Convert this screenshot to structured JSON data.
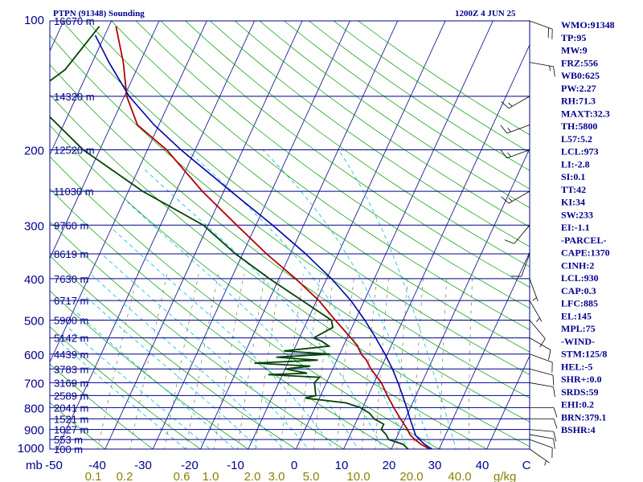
{
  "header": {
    "station": "PTPN (91348) Sounding",
    "time": "1200Z  4 JUN 25"
  },
  "indices": [
    "WMO:91348",
    "TP:95",
    "MW:9",
    "FRZ:556",
    "WB0:625",
    "PW:2.27",
    "RH:71.3",
    "MAXT:32.3",
    "TH:5800",
    "L57:5.2",
    "LCL:973",
    "LI:-2.8",
    "SI:0.1",
    "TT:42",
    "KI:34",
    "SW:233",
    "EI:-1.1",
    "-PARCEL-",
    "CAPE:1370",
    "CINH:2",
    "LCL:930",
    "CAP:0.3",
    "LFC:885",
    "EL:145",
    "MPL:75",
    "-WIND-",
    "STM:125/8",
    "HEL:-5",
    "SHR+:0.0",
    "SRDS:59",
    "EHI:0.2",
    "BRN:379.1",
    "BSHR:4"
  ],
  "colors": {
    "frame": "#00008b",
    "isobar": "#00008b",
    "isotherm": "#00008b",
    "dry_adiabat": "#009900",
    "moist_adiabat": "#00bbdd",
    "mixing_ratio": "#777755",
    "temperature": "#b00000",
    "dewpoint": "#004400",
    "parcel": "#0000aa",
    "wind": "#000000"
  },
  "chart_data": {
    "type": "line",
    "title": "PTPN (91348) Sounding",
    "xlabel": "",
    "ylabel": "mb",
    "x_axis": "Temperature (°C), skewed",
    "y_axis": "Pressure (mb), log scale",
    "ylim": [
      1000,
      100
    ],
    "xlim": [
      -50,
      50
    ],
    "pressure_ticks": [
      {
        "p": 100,
        "label": "100"
      },
      {
        "p": 200,
        "label": "200"
      },
      {
        "p": 300,
        "label": "300"
      },
      {
        "p": 400,
        "label": "400"
      },
      {
        "p": 500,
        "label": "500"
      },
      {
        "p": 600,
        "label": "600"
      },
      {
        "p": 700,
        "label": "700"
      },
      {
        "p": 800,
        "label": "800"
      },
      {
        "p": 900,
        "label": "900"
      },
      {
        "p": 1000,
        "label": "1000"
      }
    ],
    "y_unit_label": "mb",
    "temperature_ticks": [
      "-50",
      "-40",
      "-30",
      "-20",
      "-10",
      "0",
      "10",
      "20",
      "30",
      "40",
      "C"
    ],
    "mixing_ratio_labels": [
      "0.1",
      "0.2",
      "0.6",
      "1.0",
      "2.0",
      "3.0",
      "5.0",
      "10.0",
      "20.0",
      "40.0"
    ],
    "mixing_ratio_unit": "g/kg",
    "height_levels": [
      {
        "p": 100,
        "label": "16670 m"
      },
      {
        "p": 150,
        "label": "14320 m"
      },
      {
        "p": 200,
        "label": "12520 m"
      },
      {
        "p": 250,
        "label": "11030 m"
      },
      {
        "p": 300,
        "label": "9760 m"
      },
      {
        "p": 350,
        "label": "8619 m"
      },
      {
        "p": 400,
        "label": "7630 m"
      },
      {
        "p": 450,
        "label": "6717 m"
      },
      {
        "p": 500,
        "label": "5900 m"
      },
      {
        "p": 550,
        "label": "5142 m"
      },
      {
        "p": 600,
        "label": "4439 m"
      },
      {
        "p": 650,
        "label": "3783 m"
      },
      {
        "p": 700,
        "label": "3169 m"
      },
      {
        "p": 750,
        "label": "2589 m"
      },
      {
        "p": 800,
        "label": "2041 m"
      },
      {
        "p": 850,
        "label": "1521 m"
      },
      {
        "p": 900,
        "label": "1027 m"
      },
      {
        "p": 950,
        "label": "553 m"
      },
      {
        "p": 1000,
        "label": "100 m"
      }
    ],
    "series": [
      {
        "name": "temperature",
        "points": [
          [
            1008,
            30.5
          ],
          [
            1000,
            28.0
          ],
          [
            975,
            25.8
          ],
          [
            950,
            24.0
          ],
          [
            925,
            22.5
          ],
          [
            900,
            21.5
          ],
          [
            850,
            19.0
          ],
          [
            800,
            16.5
          ],
          [
            750,
            14.0
          ],
          [
            700,
            11.5
          ],
          [
            650,
            8.0
          ],
          [
            620,
            6.2
          ],
          [
            600,
            4.5
          ],
          [
            575,
            3.0
          ],
          [
            550,
            0.8
          ],
          [
            500,
            -4.2
          ],
          [
            450,
            -9.5
          ],
          [
            400,
            -16.5
          ],
          [
            350,
            -25.0
          ],
          [
            300,
            -34.0
          ],
          [
            250,
            -44.5
          ],
          [
            200,
            -56.0
          ],
          [
            175,
            -64.5
          ],
          [
            150,
            -69.5
          ],
          [
            125,
            -73.5
          ],
          [
            103,
            -78.5
          ]
        ]
      },
      {
        "name": "dewpoint",
        "points": [
          [
            1000,
            23.5
          ],
          [
            975,
            22.0
          ],
          [
            950,
            18.5
          ],
          [
            925,
            17.5
          ],
          [
            900,
            16.0
          ],
          [
            875,
            16.0
          ],
          [
            850,
            13.5
          ],
          [
            825,
            12.0
          ],
          [
            800,
            9.5
          ],
          [
            780,
            6.0
          ],
          [
            760,
            -3.0
          ],
          [
            750,
            -1.0
          ],
          [
            700,
            -2.5
          ],
          [
            680,
            -2.0
          ],
          [
            670,
            -13.0
          ],
          [
            665,
            -5.0
          ],
          [
            650,
            -10.0
          ],
          [
            640,
            -5.0
          ],
          [
            630,
            -17.0
          ],
          [
            620,
            -4.0
          ],
          [
            610,
            -13.0
          ],
          [
            600,
            -2.0
          ],
          [
            590,
            -12.0
          ],
          [
            575,
            -3.0
          ],
          [
            560,
            -5.0
          ],
          [
            550,
            -7.0
          ],
          [
            520,
            -4.0
          ],
          [
            500,
            -5.0
          ],
          [
            450,
            -13.0
          ],
          [
            400,
            -22.0
          ],
          [
            350,
            -31.5
          ],
          [
            300,
            -41.0
          ],
          [
            250,
            -57.0
          ],
          [
            200,
            -73.5
          ],
          [
            150,
            -90.0
          ],
          [
            130,
            -85.0
          ],
          [
            103,
            -82.0
          ]
        ]
      },
      {
        "name": "parcel",
        "points": [
          [
            1008,
            30.5
          ],
          [
            1000,
            28.5
          ],
          [
            975,
            26.5
          ],
          [
            950,
            25.0
          ],
          [
            930,
            23.8
          ],
          [
            900,
            22.8
          ],
          [
            850,
            21.0
          ],
          [
            800,
            19.2
          ],
          [
            750,
            17.2
          ],
          [
            700,
            15.0
          ],
          [
            650,
            12.5
          ],
          [
            600,
            9.5
          ],
          [
            550,
            6.0
          ],
          [
            500,
            2.0
          ],
          [
            450,
            -2.8
          ],
          [
            400,
            -9.0
          ],
          [
            350,
            -16.8
          ],
          [
            300,
            -26.5
          ],
          [
            250,
            -38.5
          ],
          [
            200,
            -53.0
          ],
          [
            175,
            -61.0
          ],
          [
            150,
            -69.0
          ],
          [
            125,
            -76.5
          ],
          [
            108,
            -82.0
          ]
        ]
      }
    ],
    "wind_barbs": [
      {
        "p": 1000,
        "dir": 125,
        "spd": 5
      },
      {
        "p": 950,
        "dir": 110,
        "spd": 10
      },
      {
        "p": 925,
        "dir": 100,
        "spd": 10
      },
      {
        "p": 900,
        "dir": 95,
        "spd": 10
      },
      {
        "p": 850,
        "dir": 90,
        "spd": 10
      },
      {
        "p": 800,
        "dir": 90,
        "spd": 10
      },
      {
        "p": 700,
        "dir": 100,
        "spd": 10
      },
      {
        "p": 650,
        "dir": 105,
        "spd": 10
      },
      {
        "p": 600,
        "dir": 110,
        "spd": 10
      },
      {
        "p": 550,
        "dir": 120,
        "spd": 10
      },
      {
        "p": 500,
        "dir": 140,
        "spd": 10
      },
      {
        "p": 450,
        "dir": 150,
        "spd": 5
      },
      {
        "p": 400,
        "dir": 160,
        "spd": 5
      },
      {
        "p": 350,
        "dir": 200,
        "spd": 10
      },
      {
        "p": 300,
        "dir": 220,
        "spd": 10
      },
      {
        "p": 250,
        "dir": 240,
        "spd": 15
      },
      {
        "p": 200,
        "dir": 250,
        "spd": 15
      },
      {
        "p": 175,
        "dir": 250,
        "spd": 15
      },
      {
        "p": 150,
        "dir": 240,
        "spd": 15
      },
      {
        "p": 125,
        "dir": 100,
        "spd": 15
      },
      {
        "p": 100,
        "dir": 110,
        "spd": 20
      }
    ]
  }
}
